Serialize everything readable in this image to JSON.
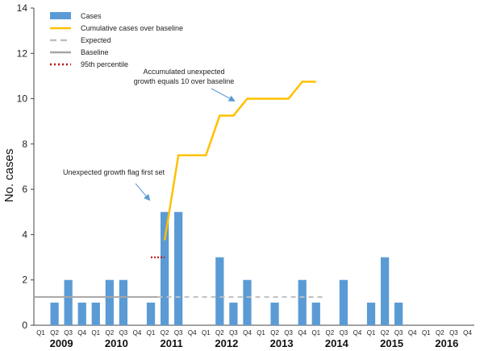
{
  "chart_data": {
    "type": "bar",
    "ylabel": "No. cases",
    "ylim": [
      0,
      14
    ],
    "yticks": [
      0,
      2,
      4,
      6,
      8,
      10,
      12,
      14
    ],
    "quarters": [
      "Q1",
      "Q2",
      "Q3",
      "Q4",
      "Q1",
      "Q2",
      "Q3",
      "Q4",
      "Q1",
      "Q2",
      "Q3",
      "Q4",
      "Q1",
      "Q2",
      "Q3",
      "Q4",
      "Q1",
      "Q2",
      "Q3",
      "Q4",
      "Q1",
      "Q2",
      "Q3",
      "Q4",
      "Q1",
      "Q2",
      "Q3",
      "Q4",
      "Q1",
      "Q2",
      "Q3",
      "Q4"
    ],
    "years": [
      "2009",
      "2010",
      "2011",
      "2012",
      "2013",
      "2014",
      "2015",
      "2016"
    ],
    "legend": {
      "cases": "Cases",
      "cumulative": "Cumulative cases over baseline",
      "expected": "Expected",
      "baseline": "Baseline",
      "p95": "95th percentile"
    },
    "colors": {
      "cases": "#5b9bd5",
      "cumulative": "#ffc000",
      "expected": "#bfbfbf",
      "baseline": "#a6a6a6",
      "p95": "#c00000"
    },
    "series": [
      {
        "name": "Cases",
        "values": [
          0,
          1,
          2,
          1,
          1,
          2,
          2,
          0,
          1,
          5,
          5,
          0,
          0,
          3,
          1,
          2,
          0,
          1,
          0,
          2,
          1,
          0,
          2,
          0,
          1,
          3,
          1,
          0,
          0,
          0,
          0,
          0
        ]
      }
    ],
    "cumulative": {
      "name": "Cumulative cases over baseline",
      "points": [
        {
          "q": 9,
          "v": 3.75
        },
        {
          "q": 10,
          "v": 7.5
        },
        {
          "q": 11,
          "v": 7.5
        },
        {
          "q": 12,
          "v": 7.5
        },
        {
          "q": 13,
          "v": 9.25
        },
        {
          "q": 14,
          "v": 9.25
        },
        {
          "q": 15,
          "v": 10
        },
        {
          "q": 16,
          "v": 10
        },
        {
          "q": 17,
          "v": 10
        },
        {
          "q": 18,
          "v": 10
        },
        {
          "q": 19,
          "v": 10.75
        },
        {
          "q": 20,
          "v": 10.75
        }
      ]
    },
    "baseline": {
      "name": "Baseline",
      "from_q": 0,
      "to_q": 8,
      "value": 1.25
    },
    "expected": {
      "name": "Expected",
      "from_q": 9,
      "to_q": 20,
      "value": 1.25
    },
    "p95": {
      "name": "95th percentile",
      "q": 8.5,
      "value": 3.0
    },
    "annotations": {
      "flag": "Unexpected growth flag first set",
      "accum_line1": "Accumulated unexpected",
      "accum_line2": "growth equals 10 over baseline"
    }
  }
}
